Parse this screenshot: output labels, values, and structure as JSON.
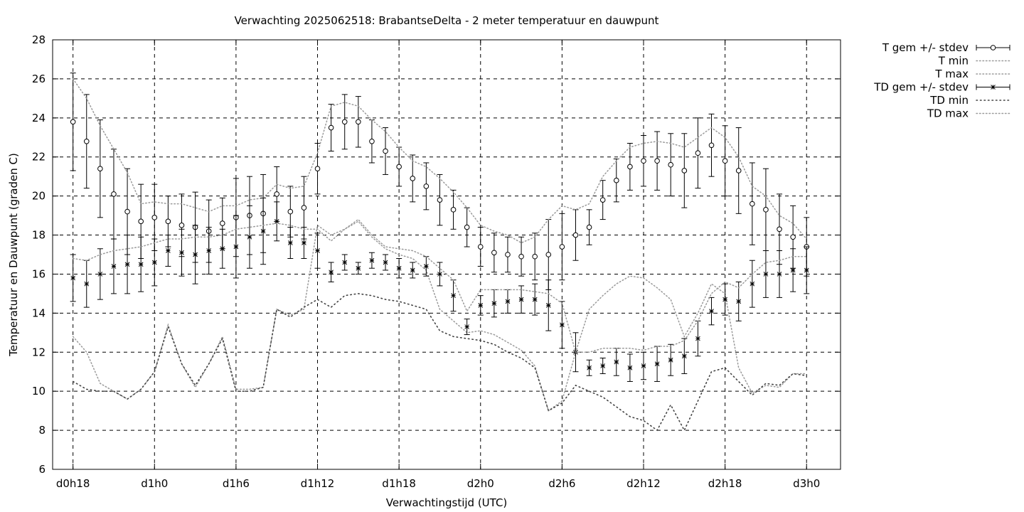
{
  "chart_data": {
    "type": "line",
    "title": "Verwachting 2025062518: BrabantseDelta - 2 meter temperatuur en dauwpunt",
    "xlabel": "Verwachtingstijd (UTC)",
    "ylabel": "Temperatuur en Dauwpunt (graden C)",
    "ylim": [
      6,
      28
    ],
    "xlim": [
      -1.5,
      56.5
    ],
    "yticks": [
      6,
      8,
      10,
      12,
      14,
      16,
      18,
      20,
      22,
      24,
      26,
      28
    ],
    "xticks": [
      {
        "label": "d0h18",
        "x": 0
      },
      {
        "label": "d1h0",
        "x": 6
      },
      {
        "label": "d1h6",
        "x": 12
      },
      {
        "label": "d1h12",
        "x": 18
      },
      {
        "label": "d1h18",
        "x": 24
      },
      {
        "label": "d2h0",
        "x": 30
      },
      {
        "label": "d2h6",
        "x": 36
      },
      {
        "label": "d2h12",
        "x": 42
      },
      {
        "label": "d2h18",
        "x": 48
      },
      {
        "label": "d3h0",
        "x": 54
      }
    ],
    "grid": true,
    "legend_position": "right",
    "legend": [
      "T gem +/- stdev",
      "T min",
      "T max",
      "TD gem +/- stdev",
      "TD min",
      "TD max"
    ],
    "x": [
      0,
      1,
      2,
      3,
      4,
      5,
      6,
      7,
      8,
      9,
      10,
      11,
      12,
      13,
      14,
      15,
      16,
      17,
      18,
      19,
      20,
      21,
      22,
      23,
      24,
      25,
      26,
      27,
      28,
      29,
      30,
      31,
      32,
      33,
      34,
      35,
      36,
      37,
      38,
      39,
      40,
      41,
      42,
      43,
      44,
      45,
      46,
      47,
      48,
      49,
      50,
      51,
      52,
      53,
      54
    ],
    "series": [
      {
        "name": "T gem +/- stdev",
        "marker": "circle",
        "values": [
          23.8,
          22.8,
          21.4,
          20.1,
          19.2,
          18.7,
          18.9,
          18.7,
          18.5,
          18.4,
          18.2,
          18.6,
          18.9,
          19.0,
          19.1,
          20.1,
          19.2,
          19.4,
          21.4,
          23.5,
          23.8,
          23.8,
          22.8,
          22.3,
          21.5,
          20.9,
          20.5,
          19.8,
          19.3,
          18.4,
          17.4,
          17.1,
          17.0,
          16.9,
          16.9,
          17.0,
          17.4,
          18.0,
          18.4,
          19.8,
          20.8,
          21.5,
          21.8,
          21.8,
          21.6,
          21.3,
          22.2,
          22.6,
          21.8,
          21.3,
          19.6,
          19.3,
          18.3,
          17.9,
          17.4
        ],
        "stdev": [
          2.5,
          2.4,
          2.5,
          2.3,
          2.2,
          1.9,
          1.7,
          1.3,
          1.6,
          1.8,
          1.6,
          1.3,
          2.0,
          2.0,
          2.0,
          1.4,
          1.3,
          1.6,
          1.3,
          1.2,
          1.4,
          1.3,
          1.1,
          1.2,
          1.0,
          1.2,
          1.2,
          1.3,
          1.0,
          1.0,
          1.0,
          1.0,
          0.9,
          1.0,
          1.2,
          1.8,
          1.7,
          1.3,
          0.9,
          1.0,
          1.1,
          1.2,
          1.3,
          1.5,
          1.6,
          1.9,
          1.8,
          1.6,
          1.8,
          2.2,
          2.1,
          2.1,
          1.8,
          1.6,
          1.5
        ]
      },
      {
        "name": "T min",
        "values": [
          12.8,
          12.0,
          10.4,
          10.0,
          9.6,
          10.1,
          11.0,
          13.4,
          11.4,
          10.2,
          11.4,
          12.8,
          10.1,
          10.1,
          10.2,
          14.2,
          13.9,
          14.2,
          18.5,
          18.0,
          18.3,
          18.7,
          17.9,
          17.3,
          17.0,
          16.8,
          16.2,
          14.2,
          13.6,
          13.0,
          13.1,
          12.9,
          12.5,
          12.1,
          11.3,
          9.0,
          9.5,
          12.0,
          14.2,
          14.9,
          15.5,
          15.9,
          15.8,
          15.3,
          14.7,
          12.8,
          14.0,
          15.5,
          15.0,
          11.2,
          9.9,
          10.3,
          10.2,
          10.9,
          10.9
        ]
      },
      {
        "name": "T max",
        "values": [
          26.0,
          25.0,
          23.6,
          22.4,
          21.2,
          19.6,
          19.7,
          19.6,
          19.6,
          19.4,
          19.2,
          19.5,
          19.5,
          19.8,
          19.9,
          20.6,
          20.4,
          20.5,
          22.2,
          24.6,
          24.8,
          24.6,
          23.9,
          23.3,
          22.5,
          21.8,
          21.5,
          20.9,
          20.2,
          19.4,
          18.5,
          18.2,
          18.0,
          17.6,
          17.9,
          18.8,
          19.5,
          19.3,
          19.6,
          21.0,
          21.8,
          22.5,
          22.7,
          22.8,
          22.7,
          22.5,
          23.0,
          23.5,
          23.0,
          22.0,
          20.5,
          20.0,
          19.0,
          18.6,
          17.8
        ]
      },
      {
        "name": "TD gem +/- stdev",
        "marker": "asterisk",
        "values": [
          15.8,
          15.5,
          16.0,
          16.4,
          16.5,
          16.5,
          16.6,
          17.2,
          17.1,
          17.0,
          17.2,
          17.3,
          17.4,
          17.9,
          18.2,
          18.7,
          17.6,
          17.6,
          17.2,
          16.1,
          16.6,
          16.3,
          16.7,
          16.6,
          16.3,
          16.2,
          16.4,
          16.0,
          14.9,
          13.3,
          14.4,
          14.5,
          14.6,
          14.7,
          14.7,
          14.4,
          13.4,
          12.0,
          11.2,
          11.3,
          11.5,
          11.2,
          11.3,
          11.4,
          11.6,
          11.8,
          12.7,
          14.1,
          14.7,
          14.6,
          15.5,
          16.0,
          16.0,
          16.2,
          16.2
        ],
        "stdev": [
          1.2,
          1.2,
          1.3,
          1.4,
          1.5,
          1.4,
          1.2,
          0.8,
          1.2,
          1.5,
          1.2,
          1.0,
          1.6,
          1.6,
          1.7,
          1.0,
          0.8,
          0.8,
          0.9,
          0.5,
          0.4,
          0.3,
          0.4,
          0.4,
          0.5,
          0.4,
          0.5,
          0.6,
          0.8,
          0.4,
          0.5,
          0.7,
          0.6,
          0.7,
          0.8,
          1.3,
          1.2,
          1.0,
          0.4,
          0.4,
          0.7,
          0.7,
          0.7,
          0.9,
          0.8,
          0.9,
          0.9,
          0.7,
          0.8,
          1.0,
          1.2,
          1.2,
          1.2,
          1.1,
          1.2
        ]
      },
      {
        "name": "TD min",
        "values": [
          10.5,
          10.1,
          10.0,
          10.0,
          9.6,
          10.1,
          11.0,
          13.3,
          11.4,
          10.3,
          11.4,
          12.7,
          10.0,
          10.0,
          10.2,
          14.2,
          13.8,
          14.3,
          14.7,
          14.3,
          14.9,
          15.0,
          14.9,
          14.7,
          14.6,
          14.4,
          14.2,
          13.1,
          12.8,
          12.7,
          12.6,
          12.4,
          12.0,
          11.7,
          11.2,
          9.0,
          9.4,
          10.3,
          10.0,
          9.7,
          9.2,
          8.7,
          8.5,
          8.0,
          9.3,
          8.0,
          9.5,
          11.0,
          11.2,
          10.5,
          9.8,
          10.4,
          10.3,
          10.9,
          10.8
        ]
      },
      {
        "name": "TD max",
        "values": [
          16.8,
          16.7,
          17.0,
          17.2,
          17.3,
          17.4,
          17.6,
          17.8,
          17.8,
          17.9,
          17.9,
          18.0,
          18.3,
          18.4,
          18.5,
          18.6,
          18.5,
          18.3,
          18.3,
          17.7,
          18.3,
          18.8,
          18.0,
          17.4,
          17.3,
          17.2,
          16.9,
          16.3,
          15.7,
          14.1,
          15.2,
          15.2,
          15.2,
          15.2,
          15.1,
          15.0,
          14.5,
          12.0,
          12.0,
          12.2,
          12.2,
          12.2,
          12.1,
          12.3,
          12.3,
          12.6,
          13.6,
          15.0,
          15.6,
          15.3,
          16.0,
          16.6,
          16.7,
          16.9,
          16.9
        ]
      }
    ]
  }
}
